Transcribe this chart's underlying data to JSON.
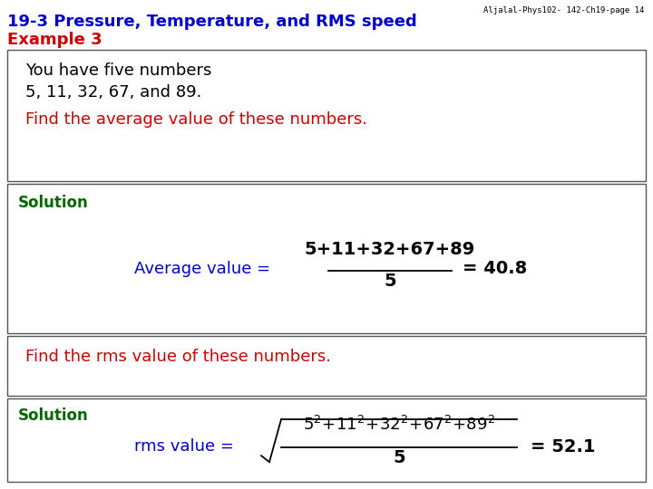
{
  "title_line1": "19-3 Pressure, Temperature, and RMS speed",
  "title_line2": "Example 3",
  "title_color": "#0000CC",
  "example_color": "#CC0000",
  "watermark": "Aljalal-Phys102- 142-Ch19-page 14",
  "box1_text_line1": "You have five numbers",
  "box1_text_line2": "5, 11, 32, 67, and 89.",
  "box1_question": "Find the average value of these numbers.",
  "box2_label": "Solution",
  "box2_label_color": "#006600",
  "avg_label_color": "#0000CC",
  "avg_numerator": "5+11+32+67+89",
  "avg_denominator": "5",
  "avg_result": "= 40.8",
  "box3_question": "Find the rms value of these numbers.",
  "box3_question_color": "#CC0000",
  "box4_label": "Solution",
  "box4_label_color": "#006600",
  "rms_label_color": "#0000CC",
  "rms_denominator": "5",
  "rms_result": "= 52.1",
  "bg_color": "#FFFFFF",
  "box_edge_color": "#555555",
  "text_color": "#000000",
  "fs_title": 13,
  "fs_body": 12,
  "fs_eq": 13,
  "fs_watermark": 6.5
}
